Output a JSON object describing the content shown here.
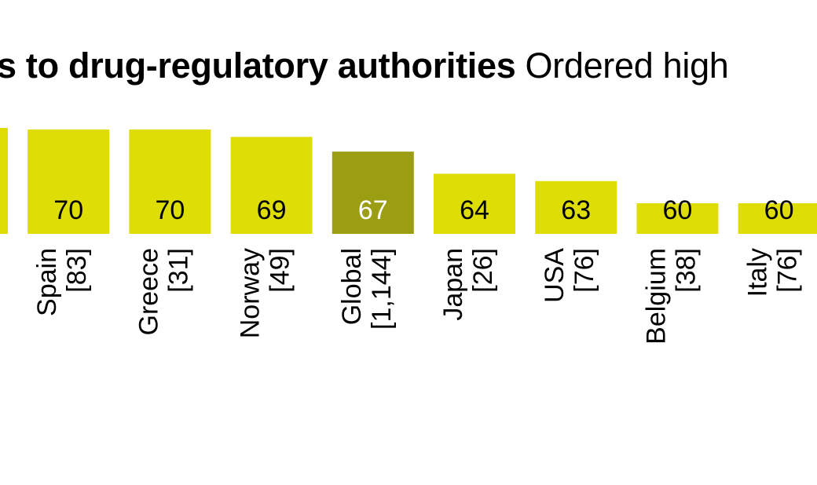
{
  "title": {
    "bold": "s to drug-regulatory authorities",
    "light": "Ordered high"
  },
  "colors": {
    "bar": "#dedd05",
    "highlight": "#9b9e12",
    "text_dark": "#000000",
    "text_light": "#ffffff"
  },
  "chart_data": {
    "type": "bar",
    "title": "s to drug-regulatory authorities Ordered high",
    "categories": [
      "",
      "Spain",
      "Greece",
      "Norway",
      "Global",
      "Japan",
      "USA",
      "Belgium",
      "Italy"
    ],
    "counts": [
      "",
      "[83]",
      "[31]",
      "[49]",
      "[1,144]",
      "[26]",
      "[76]",
      "[38]",
      "[76]"
    ],
    "values": [
      null,
      70,
      70,
      69,
      67,
      64,
      63,
      60,
      60
    ],
    "highlight_category": "Global",
    "xlabel": "",
    "ylabel": "",
    "grid": false,
    "legend": "none"
  }
}
